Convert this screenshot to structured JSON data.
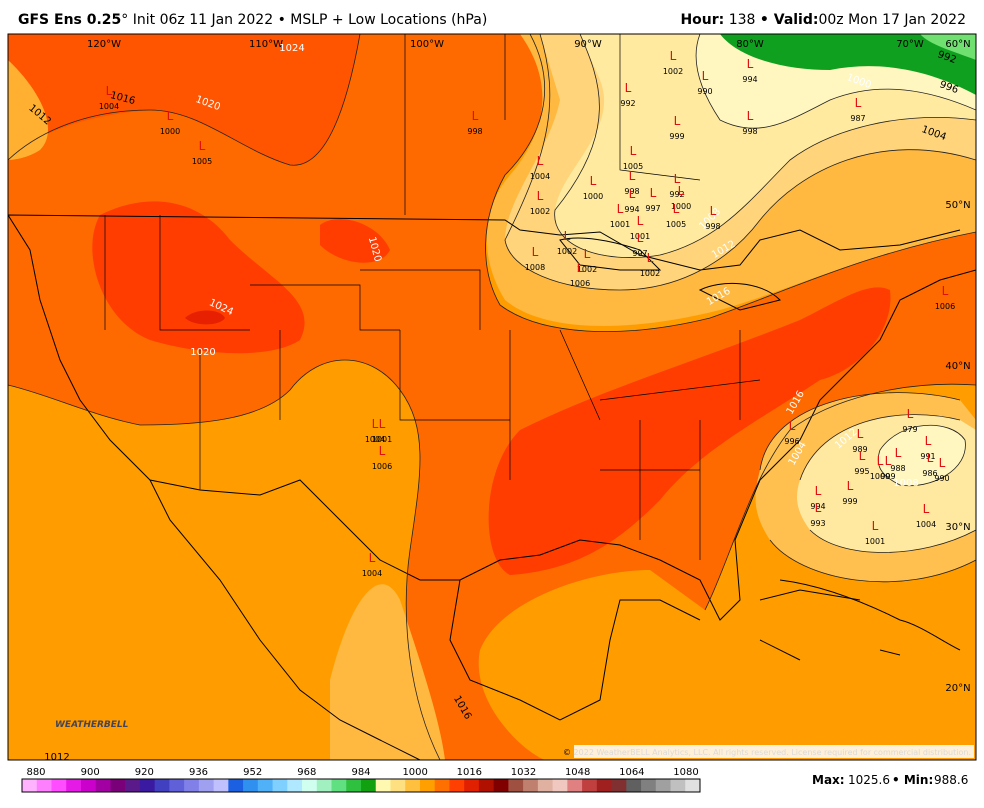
{
  "header": {
    "model": "GFS Ens 0.25",
    "description": "°  Init 06z 11 Jan 2022 • MSLP + Low Locations (hPa)",
    "hour_label": "Hour:",
    "hour": "138",
    "valid_label": "• Valid:",
    "valid": "00z Mon 17 Jan 2022"
  },
  "map": {
    "longitude_labels": [
      "120°W",
      "110°W",
      "100°W",
      "90°W",
      "80°W",
      "70°W",
      "60°N"
    ],
    "latitude_labels": [
      "50°N",
      "40°N",
      "30°N",
      "20°N"
    ],
    "isobar_labels": [
      "1024",
      "1016",
      "1012",
      "1020",
      "1020",
      "1024",
      "1020",
      "1008",
      "1012",
      "1016",
      "1000",
      "992",
      "996",
      "1004",
      "1012",
      "1008",
      "1004",
      "1016",
      "1016",
      "1012"
    ],
    "low_symbol": "L",
    "lows": [
      "1004",
      "1000",
      "1005",
      "998",
      "1002",
      "990",
      "992",
      "994",
      "999",
      "998",
      "987",
      "1004",
      "1005",
      "1000",
      "998",
      "994",
      "997",
      "992",
      "1000",
      "1002",
      "1005",
      "998",
      "1001",
      "1001",
      "1002",
      "1008",
      "1002",
      "1006",
      "997",
      "1002",
      "1004",
      "1001",
      "1006",
      "1004",
      "979",
      "989",
      "995",
      "1000",
      "999",
      "988",
      "991",
      "986",
      "990",
      "994",
      "999",
      "1001",
      "1004",
      "993",
      "1006",
      "996"
    ],
    "logo": "WEATHERBELL",
    "copyright": "© 2022 WeatherBELL Analytics, LLC. All rights reserved. License required for commercial distribution."
  },
  "colorbar": {
    "ticks": [
      "880",
      "900",
      "920",
      "936",
      "952",
      "968",
      "984",
      "1000",
      "1016",
      "1032",
      "1048",
      "1064",
      "1080"
    ],
    "colors": [
      "#ffb3ff",
      "#ff80ff",
      "#ff4dff",
      "#e61ae6",
      "#cc00cc",
      "#a300a3",
      "#7a007a",
      "#5a1a8a",
      "#3a1aa0",
      "#4040c0",
      "#6060d8",
      "#8080e8",
      "#a0a0f0",
      "#c0c0ff",
      "#1a60e0",
      "#3090f0",
      "#50b0f8",
      "#80d0ff",
      "#b0e8ff",
      "#d0fff0",
      "#a0f0c0",
      "#60e080",
      "#30c040",
      "#10a010",
      "#fff8b0",
      "#ffe080",
      "#ffc040",
      "#ffa000",
      "#ff7000",
      "#ff4000",
      "#e02000",
      "#b01000",
      "#800000",
      "#a05040",
      "#c08070",
      "#e0b0a0",
      "#f0c8c0",
      "#e08080",
      "#c04040",
      "#a02020",
      "#803030",
      "#606060",
      "#808080",
      "#a0a0a0",
      "#c0c0c0",
      "#e0e0e0"
    ],
    "max_label": "Max:",
    "max": "1025.6",
    "min_label": "• Min:",
    "min": "988.6"
  }
}
